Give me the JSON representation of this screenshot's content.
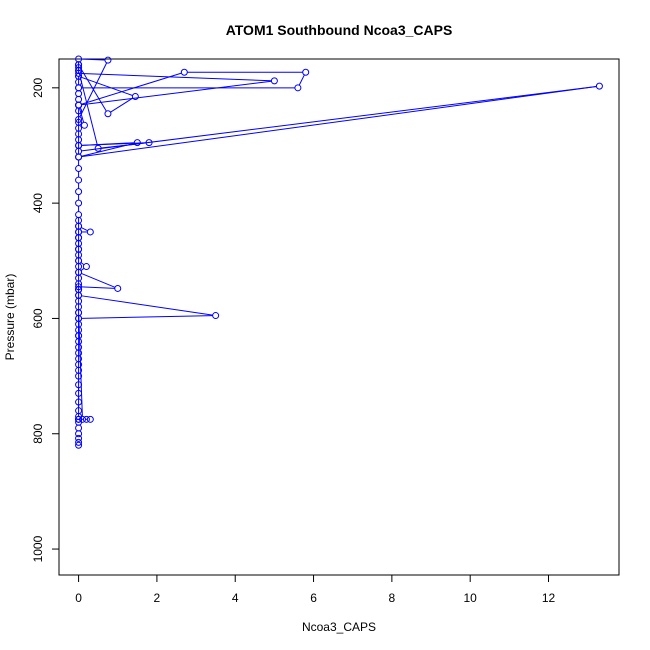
{
  "chart_data": {
    "type": "line",
    "title": "ATOM1 Southbound Ncoa3_CAPS",
    "xlabel": "Ncoa3_CAPS",
    "ylabel": "Pressure (mbar)",
    "xlim": [
      -0.5,
      13.8
    ],
    "ylim": [
      1045,
      150
    ],
    "y_reversed": true,
    "x_ticks": [
      0,
      2,
      4,
      6,
      8,
      10,
      12
    ],
    "y_ticks": [
      200,
      400,
      600,
      800,
      1000
    ],
    "x_tick_labels": [
      "0",
      "2",
      "4",
      "6",
      "8",
      "10",
      "12"
    ],
    "y_tick_labels": [
      "200",
      "400",
      "600",
      "800",
      "1000"
    ],
    "grid": false,
    "legend": "none",
    "series_color": "#0000ff",
    "series": [
      {
        "x": [
          0,
          0,
          0,
          0,
          0,
          0,
          0,
          0,
          0,
          0,
          0,
          0,
          0,
          0,
          0,
          0,
          0,
          0,
          0,
          0,
          0,
          0,
          0,
          0,
          0,
          0,
          0.2,
          0.3,
          0.1,
          0,
          0,
          0,
          0,
          0,
          0,
          0,
          0,
          0,
          0,
          0,
          0,
          0,
          0,
          0,
          0,
          0,
          0,
          0,
          3.5,
          0,
          0,
          0,
          1.0,
          0,
          0.2,
          0,
          0,
          0,
          0,
          0.3,
          0,
          0,
          0,
          0,
          0,
          0,
          0,
          0,
          0,
          0,
          0,
          0,
          0,
          0,
          0,
          0,
          0,
          0,
          0,
          0,
          0.5,
          1.8,
          0,
          1.5,
          0,
          13.3,
          0,
          0,
          5.0,
          0,
          0,
          5.6,
          5.8,
          2.7,
          0,
          0.15,
          0,
          0.75,
          0,
          0,
          1.45,
          0.75,
          0,
          0,
          0,
          0
        ],
        "y": [
          820,
          815,
          808,
          800,
          790,
          780,
          770,
          760,
          745,
          730,
          715,
          700,
          690,
          680,
          670,
          660,
          650,
          640,
          630,
          620,
          610,
          600,
          590,
          775,
          775,
          775,
          775,
          775,
          775,
          590,
          580,
          570,
          560,
          550,
          540,
          530,
          520,
          510,
          500,
          490,
          480,
          470,
          460,
          450,
          440,
          430,
          630,
          600,
          595,
          560,
          550,
          545,
          548,
          520,
          510,
          500,
          480,
          460,
          450,
          450,
          440,
          420,
          400,
          380,
          360,
          340,
          320,
          300,
          290,
          280,
          270,
          260,
          240,
          230,
          220,
          210,
          200,
          190,
          180,
          170,
          305,
          295,
          300,
          295,
          320,
          197,
          310,
          230,
          188,
          175,
          200,
          200,
          173,
          173,
          230,
          265,
          255,
          152,
          150,
          180,
          215,
          245,
          160,
          170,
          165,
          160
        ]
      }
    ]
  }
}
